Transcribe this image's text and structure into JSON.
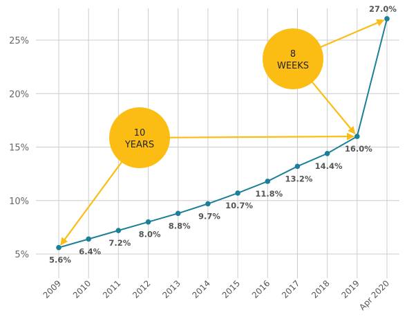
{
  "chart_data": {
    "type": "line",
    "categories": [
      "2009",
      "2010",
      "2011",
      "2012",
      "2013",
      "2014",
      "2015",
      "2016",
      "2017",
      "2018",
      "2019",
      "Apr 2020"
    ],
    "values": [
      5.6,
      6.4,
      7.2,
      8.0,
      8.8,
      9.7,
      10.7,
      11.8,
      13.2,
      14.4,
      16.0,
      27.0
    ],
    "data_labels": [
      "5.6%",
      "6.4%",
      "7.2%",
      "8.0%",
      "8.8%",
      "9.7%",
      "10.7%",
      "11.8%",
      "13.2%",
      "14.4%",
      "16.0%",
      "27.0%"
    ],
    "y_ticks": [
      5,
      10,
      15,
      20,
      25
    ],
    "y_tick_labels": [
      "5%",
      "10%",
      "15%",
      "20%",
      "25%"
    ],
    "ylim": [
      3,
      28.5
    ],
    "grid": true,
    "title": "",
    "xlabel": "",
    "ylabel": "",
    "colors": {
      "line": "#1b7f98",
      "marker": "#1b7f98",
      "callout": "#fbbd14",
      "grid": "#cccccc"
    },
    "annotations": [
      {
        "id": "callout-10-years",
        "line1": "10",
        "line2": "YEARS",
        "from_category": "2009",
        "to_category": "2019"
      },
      {
        "id": "callout-8-weeks",
        "line1": "8",
        "line2": "WEEKS",
        "from_category": "2019",
        "to_category": "Apr 2020"
      }
    ]
  }
}
